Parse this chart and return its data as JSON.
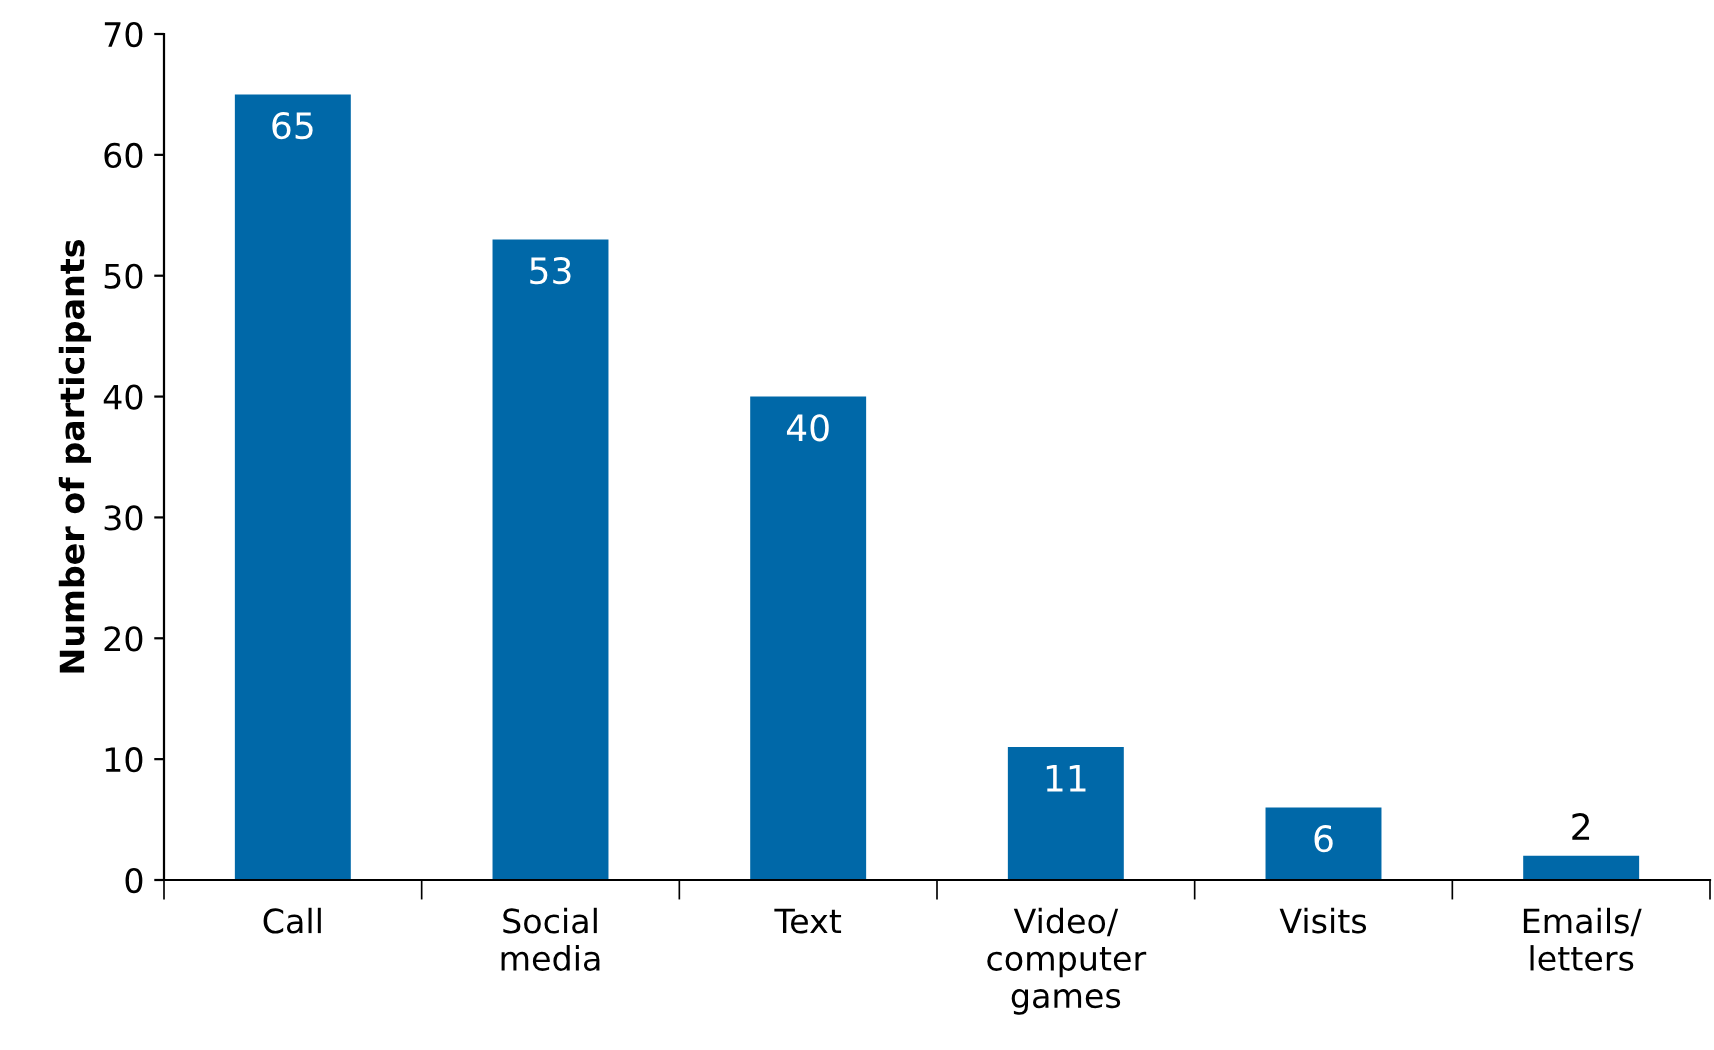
{
  "chart_data": {
    "type": "bar",
    "ylabel": "Number of participants",
    "categories": [
      "Call",
      "Social\nmedia",
      "Text",
      "Video/\ncomputer\ngames",
      "Visits",
      "Emails/\nletters"
    ],
    "values": [
      65,
      53,
      40,
      11,
      6,
      2
    ],
    "color": "#0068a8",
    "ylim": [
      0,
      70
    ],
    "yticks": [
      0,
      10,
      20,
      30,
      40,
      50,
      60,
      70
    ],
    "data_labels": true,
    "grid": false,
    "legend": false
  }
}
